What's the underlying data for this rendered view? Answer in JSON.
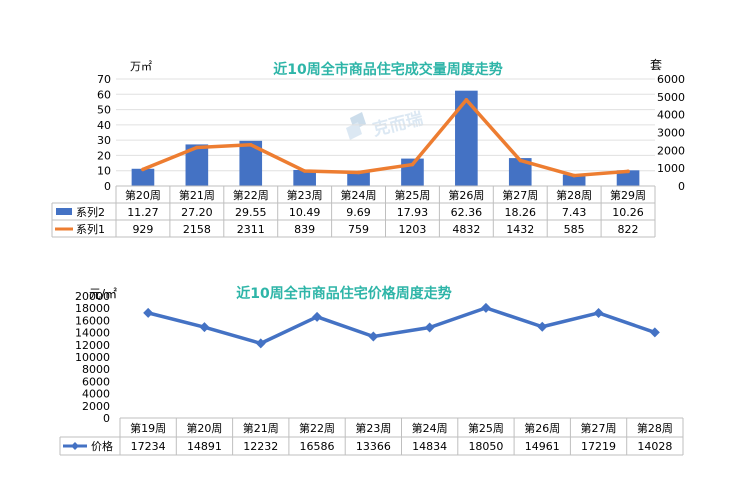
{
  "chart_data": [
    {
      "type": "bar+line",
      "title": "近10周全市商品住宅成交量周度走势",
      "y_left_unit": "万㎡",
      "y_right_unit": "套",
      "y_left_ticks": [
        "0",
        "10",
        "20",
        "30",
        "40",
        "50",
        "60",
        "70"
      ],
      "y_right_ticks": [
        "0",
        "1000",
        "2000",
        "3000",
        "4000",
        "5000",
        "6000"
      ],
      "y_left_lim": [
        0,
        70
      ],
      "y_right_lim": [
        0,
        6000
      ],
      "categories": [
        "第20周",
        "第21周",
        "第22周",
        "第23周",
        "第24周",
        "第25周",
        "第26周",
        "第27周",
        "第28周",
        "第29周"
      ],
      "series": [
        {
          "name": "系列2",
          "type": "bar",
          "axis": "left",
          "values": [
            11.27,
            27.2,
            29.55,
            10.49,
            9.69,
            17.93,
            62.36,
            18.26,
            7.43,
            10.26
          ],
          "labels": [
            "11.27",
            "27.20",
            "29.55",
            "10.49",
            "9.69",
            "17.93",
            "62.36",
            "18.26",
            "7.43",
            "10.26"
          ],
          "color": "#4472C4"
        },
        {
          "name": "系列1",
          "type": "line",
          "axis": "right",
          "values": [
            929,
            2158,
            2311,
            839,
            759,
            1203,
            4832,
            1432,
            585,
            822
          ],
          "labels": [
            "929",
            "2158",
            "2311",
            "839",
            "759",
            "1203",
            "4832",
            "1432",
            "585",
            "822"
          ],
          "color": "#ED7D31"
        }
      ],
      "watermark": "克而瑞"
    },
    {
      "type": "line",
      "title": "近10周全市商品住宅价格周度走势",
      "y_unit": "元/㎡",
      "y_ticks": [
        "0",
        "2000",
        "4000",
        "6000",
        "8000",
        "10000",
        "12000",
        "14000",
        "16000",
        "18000",
        "20000"
      ],
      "y_lim": [
        0,
        20000
      ],
      "categories": [
        "第19周",
        "第20周",
        "第21周",
        "第22周",
        "第23周",
        "第24周",
        "第25周",
        "第26周",
        "第27周",
        "第28周"
      ],
      "series": [
        {
          "name": "价格",
          "type": "line",
          "values": [
            17234,
            14891,
            12232,
            16586,
            13366,
            14834,
            18050,
            14961,
            17219,
            14028
          ],
          "labels": [
            "17234",
            "14891",
            "12232",
            "16586",
            "13366",
            "14834",
            "18050",
            "14961",
            "17219",
            "14028"
          ],
          "color": "#4472C4"
        }
      ]
    }
  ]
}
